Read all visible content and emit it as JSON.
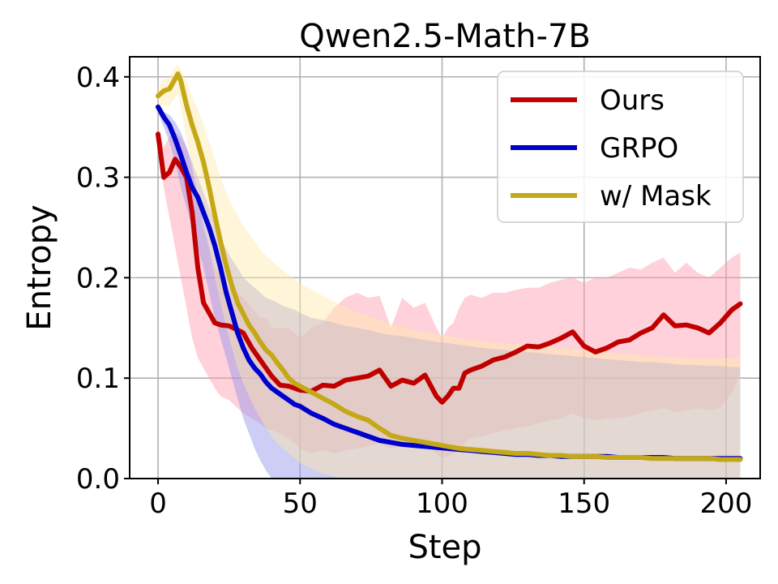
{
  "chart_data": {
    "type": "line",
    "title": "Qwen2.5-Math-7B",
    "xlabel": "Step",
    "ylabel": "Entropy",
    "xlim": [
      -10,
      212
    ],
    "ylim": [
      0.0,
      0.42
    ],
    "x_ticks": [
      0,
      50,
      100,
      150,
      200
    ],
    "y_ticks": [
      0.0,
      0.1,
      0.2,
      0.3,
      0.4
    ],
    "x_tick_labels": [
      "0",
      "50",
      "100",
      "150",
      "200"
    ],
    "y_tick_labels": [
      "0.0",
      "0.1",
      "0.2",
      "0.3",
      "0.4"
    ],
    "grid": true,
    "legend_position": "top-right",
    "series": [
      {
        "name": "Ours",
        "color": "#c00000",
        "band_color": "#ff9aac",
        "x": [
          0,
          2,
          4,
          6,
          8,
          10,
          12,
          14,
          16,
          18,
          20,
          22,
          25,
          28,
          30,
          33,
          36,
          38,
          40,
          43,
          46,
          50,
          54,
          58,
          62,
          66,
          70,
          74,
          78,
          82,
          86,
          90,
          94,
          98,
          100,
          102,
          104,
          106,
          108,
          110,
          114,
          118,
          122,
          126,
          130,
          134,
          138,
          142,
          146,
          150,
          154,
          158,
          162,
          166,
          170,
          174,
          178,
          182,
          186,
          190,
          194,
          198,
          202,
          205
        ],
        "values": [
          0.343,
          0.3,
          0.305,
          0.318,
          0.31,
          0.3,
          0.265,
          0.21,
          0.175,
          0.165,
          0.155,
          0.153,
          0.152,
          0.148,
          0.145,
          0.13,
          0.118,
          0.11,
          0.102,
          0.093,
          0.092,
          0.088,
          0.087,
          0.093,
          0.092,
          0.098,
          0.1,
          0.102,
          0.108,
          0.092,
          0.098,
          0.095,
          0.103,
          0.082,
          0.076,
          0.082,
          0.09,
          0.09,
          0.105,
          0.108,
          0.112,
          0.118,
          0.121,
          0.126,
          0.132,
          0.131,
          0.135,
          0.14,
          0.146,
          0.132,
          0.126,
          0.13,
          0.136,
          0.138,
          0.145,
          0.15,
          0.163,
          0.152,
          0.153,
          0.15,
          0.145,
          0.155,
          0.168,
          0.174
        ],
        "lower": [
          0.33,
          0.29,
          0.26,
          0.23,
          0.2,
          0.17,
          0.14,
          0.12,
          0.11,
          0.1,
          0.09,
          0.082,
          0.078,
          0.07,
          0.065,
          0.06,
          0.055,
          0.05,
          0.048,
          0.045,
          0.04,
          0.03,
          0.025,
          0.028,
          0.025,
          0.028,
          0.03,
          0.032,
          0.035,
          0.03,
          0.032,
          0.03,
          0.035,
          0.025,
          0.02,
          0.022,
          0.025,
          0.03,
          0.035,
          0.04,
          0.042,
          0.045,
          0.048,
          0.05,
          0.052,
          0.055,
          0.058,
          0.06,
          0.065,
          0.06,
          0.058,
          0.06,
          0.06,
          0.062,
          0.065,
          0.068,
          0.07,
          0.066,
          0.068,
          0.07,
          0.068,
          0.07,
          0.085,
          0.105
        ],
        "upper": [
          0.35,
          0.33,
          0.34,
          0.345,
          0.34,
          0.33,
          0.31,
          0.28,
          0.25,
          0.23,
          0.21,
          0.2,
          0.19,
          0.185,
          0.18,
          0.17,
          0.16,
          0.16,
          0.15,
          0.15,
          0.15,
          0.14,
          0.15,
          0.155,
          0.17,
          0.18,
          0.185,
          0.18,
          0.182,
          0.15,
          0.18,
          0.17,
          0.175,
          0.15,
          0.14,
          0.15,
          0.155,
          0.17,
          0.18,
          0.183,
          0.18,
          0.185,
          0.185,
          0.188,
          0.19,
          0.19,
          0.195,
          0.198,
          0.2,
          0.195,
          0.2,
          0.2,
          0.205,
          0.21,
          0.208,
          0.215,
          0.22,
          0.205,
          0.215,
          0.205,
          0.2,
          0.21,
          0.22,
          0.225
        ]
      },
      {
        "name": "GRPO",
        "color": "#0000cc",
        "band_color": "#9090e8",
        "x": [
          0,
          2,
          4,
          6,
          8,
          10,
          12,
          14,
          16,
          18,
          20,
          22,
          24,
          26,
          28,
          30,
          32,
          34,
          36,
          38,
          40,
          42,
          44,
          46,
          48,
          50,
          54,
          58,
          62,
          66,
          70,
          74,
          78,
          82,
          86,
          90,
          94,
          98,
          102,
          106,
          110,
          114,
          118,
          122,
          126,
          130,
          134,
          138,
          142,
          146,
          150,
          154,
          158,
          162,
          166,
          170,
          174,
          178,
          182,
          186,
          190,
          194,
          198,
          202,
          205
        ],
        "values": [
          0.37,
          0.36,
          0.352,
          0.338,
          0.322,
          0.305,
          0.29,
          0.28,
          0.265,
          0.25,
          0.232,
          0.21,
          0.185,
          0.165,
          0.145,
          0.13,
          0.118,
          0.11,
          0.104,
          0.096,
          0.09,
          0.086,
          0.082,
          0.078,
          0.074,
          0.072,
          0.065,
          0.06,
          0.054,
          0.05,
          0.046,
          0.042,
          0.038,
          0.036,
          0.034,
          0.033,
          0.032,
          0.031,
          0.03,
          0.029,
          0.028,
          0.027,
          0.026,
          0.025,
          0.024,
          0.024,
          0.023,
          0.023,
          0.022,
          0.022,
          0.022,
          0.022,
          0.022,
          0.021,
          0.021,
          0.021,
          0.021,
          0.021,
          0.02,
          0.02,
          0.02,
          0.02,
          0.02,
          0.02,
          0.02
        ],
        "lower": [
          0.365,
          0.35,
          0.335,
          0.315,
          0.29,
          0.27,
          0.25,
          0.23,
          0.21,
          0.185,
          0.16,
          0.14,
          0.12,
          0.1,
          0.08,
          0.06,
          0.045,
          0.03,
          0.018,
          0.008,
          0.0,
          -0.01,
          -0.02,
          -0.02,
          -0.02,
          -0.02,
          -0.02,
          -0.02,
          -0.02,
          -0.02,
          -0.02,
          -0.02,
          -0.02,
          -0.02,
          -0.02,
          -0.02,
          -0.02,
          -0.02,
          -0.02,
          -0.02,
          -0.02,
          -0.02,
          -0.02,
          -0.02,
          -0.02,
          -0.02,
          -0.02,
          -0.02,
          -0.02,
          -0.02,
          -0.02,
          -0.02,
          -0.02,
          -0.02,
          -0.02,
          -0.02,
          -0.02,
          -0.02,
          -0.02,
          -0.02,
          -0.02,
          -0.02,
          -0.02,
          -0.02,
          -0.02
        ],
        "upper": [
          0.375,
          0.365,
          0.362,
          0.355,
          0.345,
          0.33,
          0.315,
          0.3,
          0.285,
          0.27,
          0.255,
          0.24,
          0.228,
          0.218,
          0.21,
          0.2,
          0.195,
          0.19,
          0.185,
          0.18,
          0.178,
          0.175,
          0.172,
          0.17,
          0.168,
          0.165,
          0.16,
          0.158,
          0.155,
          0.152,
          0.15,
          0.148,
          0.145,
          0.143,
          0.142,
          0.14,
          0.138,
          0.136,
          0.135,
          0.133,
          0.132,
          0.13,
          0.129,
          0.128,
          0.127,
          0.126,
          0.125,
          0.124,
          0.123,
          0.122,
          0.121,
          0.12,
          0.119,
          0.118,
          0.117,
          0.116,
          0.116,
          0.115,
          0.114,
          0.113,
          0.113,
          0.112,
          0.112,
          0.111,
          0.111
        ]
      },
      {
        "name": "w/ Mask",
        "color": "#c4a818",
        "band_color": "#ffe9a8",
        "x": [
          0,
          2,
          4,
          6,
          7,
          8,
          10,
          12,
          14,
          16,
          18,
          20,
          22,
          24,
          26,
          28,
          30,
          32,
          34,
          36,
          38,
          40,
          42,
          44,
          46,
          48,
          50,
          54,
          58,
          62,
          66,
          70,
          74,
          78,
          82,
          86,
          90,
          94,
          98,
          102,
          106,
          110,
          114,
          118,
          122,
          126,
          130,
          134,
          138,
          142,
          146,
          150,
          154,
          158,
          162,
          166,
          170,
          174,
          178,
          182,
          186,
          190,
          194,
          198,
          202,
          205
        ],
        "values": [
          0.381,
          0.386,
          0.388,
          0.398,
          0.403,
          0.396,
          0.372,
          0.352,
          0.335,
          0.315,
          0.29,
          0.262,
          0.236,
          0.212,
          0.192,
          0.175,
          0.164,
          0.153,
          0.145,
          0.136,
          0.128,
          0.123,
          0.115,
          0.108,
          0.1,
          0.095,
          0.092,
          0.086,
          0.08,
          0.074,
          0.067,
          0.062,
          0.058,
          0.05,
          0.043,
          0.04,
          0.038,
          0.036,
          0.034,
          0.032,
          0.03,
          0.029,
          0.028,
          0.027,
          0.026,
          0.025,
          0.025,
          0.024,
          0.023,
          0.023,
          0.022,
          0.022,
          0.022,
          0.021,
          0.021,
          0.021,
          0.021,
          0.02,
          0.02,
          0.02,
          0.02,
          0.02,
          0.02,
          0.019,
          0.019,
          0.019
        ],
        "lower": [
          0.37,
          0.372,
          0.37,
          0.38,
          0.383,
          0.37,
          0.34,
          0.31,
          0.28,
          0.255,
          0.23,
          0.2,
          0.175,
          0.15,
          0.13,
          0.11,
          0.095,
          0.082,
          0.07,
          0.06,
          0.05,
          0.042,
          0.035,
          0.03,
          0.025,
          0.02,
          0.015,
          0.01,
          0.005,
          0.002,
          0.0,
          0.0,
          0.0,
          0.0,
          0.0,
          0.0,
          0.0,
          0.0,
          0.0,
          0.0,
          0.0,
          0.0,
          0.0,
          0.0,
          0.0,
          0.0,
          0.0,
          0.0,
          0.0,
          0.0,
          0.0,
          0.0,
          0.0,
          0.0,
          0.0,
          0.0,
          0.0,
          0.0,
          0.0,
          0.0,
          0.0,
          0.0,
          0.0,
          0.0,
          0.0,
          0.0
        ],
        "upper": [
          0.39,
          0.398,
          0.4,
          0.41,
          0.412,
          0.408,
          0.395,
          0.38,
          0.368,
          0.352,
          0.335,
          0.318,
          0.3,
          0.285,
          0.272,
          0.262,
          0.252,
          0.244,
          0.236,
          0.228,
          0.222,
          0.217,
          0.212,
          0.207,
          0.203,
          0.199,
          0.195,
          0.188,
          0.182,
          0.176,
          0.171,
          0.166,
          0.162,
          0.158,
          0.154,
          0.151,
          0.148,
          0.146,
          0.144,
          0.142,
          0.14,
          0.138,
          0.137,
          0.136,
          0.135,
          0.134,
          0.133,
          0.132,
          0.131,
          0.13,
          0.129,
          0.128,
          0.127,
          0.126,
          0.125,
          0.124,
          0.123,
          0.122,
          0.121,
          0.121,
          0.12,
          0.12,
          0.12,
          0.12,
          0.12,
          0.121
        ]
      }
    ]
  }
}
